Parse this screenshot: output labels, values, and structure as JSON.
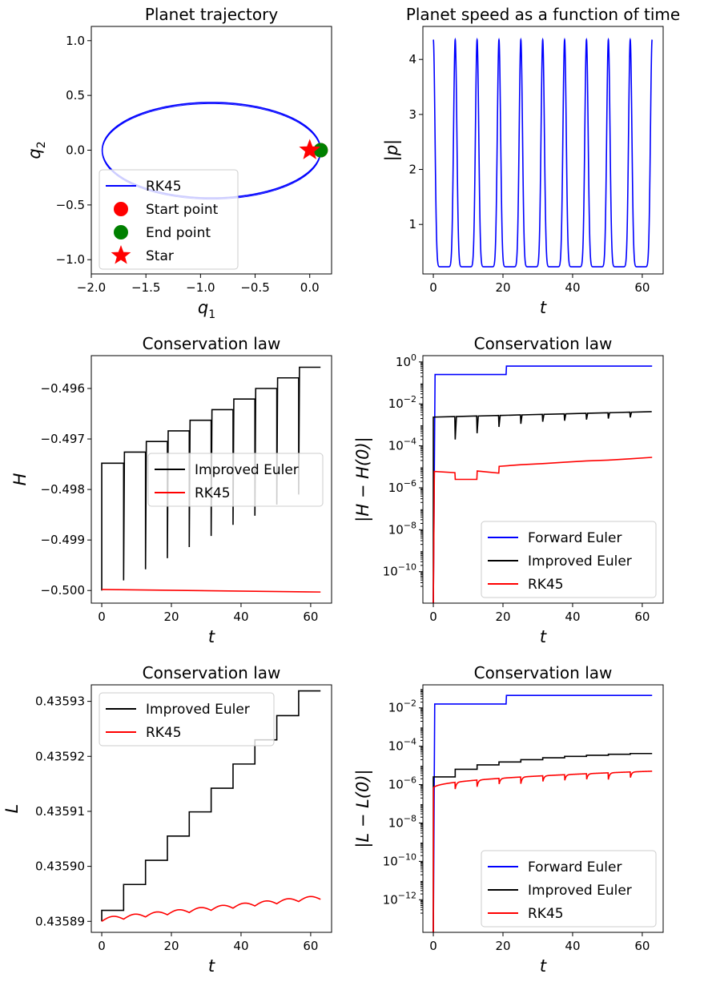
{
  "chart_data": [
    {
      "type": "line",
      "title": "Planet trajectory",
      "xlabel_base": "q",
      "xlabel_sub": "1",
      "ylabel_base": "q",
      "ylabel_sub": "2",
      "xlim": [
        -2.0,
        0.2
      ],
      "ylim": [
        -1.13,
        1.13
      ],
      "xticks": [
        -2.0,
        -1.5,
        -1.0,
        -0.5,
        0.0
      ],
      "xtick_labels": [
        "−2.0",
        "−1.5",
        "−1.0",
        "−0.5",
        "0.0"
      ],
      "yticks": [
        -1.0,
        -0.5,
        0.0,
        0.5,
        1.0
      ],
      "ytick_labels": [
        "−1.0",
        "−0.5",
        "0.0",
        "0.5",
        "1.0"
      ],
      "orbit": {
        "center_x": -0.9,
        "semi_major": 1.0,
        "semi_minor": 0.436,
        "color": "#0000ff"
      },
      "start_point": {
        "x": 0.1,
        "y": 0.0,
        "color": "#ff0000"
      },
      "end_point": {
        "x": 0.1,
        "y": 0.0,
        "color": "#008000"
      },
      "star": {
        "x": 0.0,
        "y": 0.0,
        "color": "#ff0000"
      },
      "legend": {
        "loc": "lower left",
        "entries": [
          {
            "label": "RK45",
            "kind": "line",
            "color": "#0000ff"
          },
          {
            "label": "Start point",
            "kind": "circle",
            "color": "#ff0000"
          },
          {
            "label": "End point",
            "kind": "circle",
            "color": "#008000"
          },
          {
            "label": "Star",
            "kind": "star",
            "color": "#ff0000"
          }
        ]
      }
    },
    {
      "type": "line",
      "title": "Planet speed as a function of time",
      "xlabel": "t",
      "ylabel": "|p|",
      "xlim": [
        -3,
        66
      ],
      "ylim": [
        0.1,
        4.6
      ],
      "xticks": [
        0,
        20,
        40,
        60
      ],
      "xtick_labels": [
        "0",
        "20",
        "40",
        "60"
      ],
      "yticks": [
        1,
        2,
        3,
        4
      ],
      "ytick_labels": [
        "1",
        "2",
        "3",
        "4"
      ],
      "series": [
        {
          "color": "#0000ff",
          "period": 6.283,
          "peak": 4.36,
          "min": 0.23,
          "t_end": 62.83
        }
      ]
    },
    {
      "type": "line",
      "title": "Conservation law",
      "xlabel": "t",
      "ylabel": "H",
      "xlim": [
        -3,
        66
      ],
      "ylim": [
        -0.50025,
        -0.49535
      ],
      "xticks": [
        0,
        20,
        40,
        60
      ],
      "xtick_labels": [
        "0",
        "20",
        "40",
        "60"
      ],
      "yticks": [
        -0.5,
        -0.499,
        -0.498,
        -0.497,
        -0.496
      ],
      "ytick_labels": [
        "−0.500",
        "−0.499",
        "−0.498",
        "−0.497",
        "−0.496"
      ],
      "series": [
        {
          "name": "Improved Euler",
          "color": "#000000",
          "t": [
            0,
            6.28,
            12.57,
            18.85,
            25.13,
            31.42,
            37.7,
            43.98,
            50.27,
            56.55,
            62.83
          ],
          "levels": [
            -0.49748,
            -0.49726,
            -0.49705,
            -0.49684,
            -0.49663,
            -0.49642,
            -0.49621,
            -0.496,
            -0.49579,
            -0.49558,
            -0.49558
          ],
          "dips": [
            -0.4998,
            -0.49958,
            -0.49936,
            -0.49914,
            -0.49892,
            -0.4987,
            -0.49852,
            -0.4983,
            -0.4981
          ]
        },
        {
          "name": "RK45",
          "color": "#ff0000",
          "t": [
            0,
            62.83
          ],
          "values": [
            -0.49998,
            -0.50003
          ]
        }
      ],
      "legend": {
        "loc": "center right"
      }
    },
    {
      "type": "line",
      "title": "Conservation law",
      "xlabel": "t",
      "ylabel": "|H − H(0)|",
      "yscale": "log",
      "xlim": [
        -3,
        66
      ],
      "ylim_log10": [
        -11.5,
        0.3
      ],
      "xticks": [
        0,
        20,
        40,
        60
      ],
      "xtick_labels": [
        "0",
        "20",
        "40",
        "60"
      ],
      "yticks_log10": [
        0,
        -2,
        -4,
        -6,
        -8,
        -10
      ],
      "series": [
        {
          "name": "Forward Euler",
          "color": "#0000ff",
          "t": [
            0,
            0.5,
            20.9,
            21.0,
            62.83
          ],
          "log10": [
            -11.5,
            -0.6,
            -0.6,
            -0.2,
            -0.2
          ]
        },
        {
          "name": "Improved Euler",
          "color": "#000000",
          "t": [
            0,
            62.83
          ],
          "log10_start": -2.63,
          "log10_end": -2.37,
          "period": 6.283,
          "dips": [
            -3.7,
            -3.4,
            -3.1,
            -2.95,
            -2.85,
            -2.8,
            -2.75,
            -2.7,
            -2.65
          ]
        },
        {
          "name": "RK45",
          "color": "#ff0000",
          "t": [
            0.0,
            0.3,
            6.2,
            6.3,
            12.5,
            12.6,
            18.8,
            18.9,
            25.1,
            31.4,
            37.7,
            44.0,
            50.3,
            56.5,
            62.83
          ],
          "log10": [
            -11.5,
            -5.22,
            -5.28,
            -5.6,
            -5.6,
            -5.2,
            -5.3,
            -4.98,
            -4.9,
            -4.85,
            -4.78,
            -4.72,
            -4.68,
            -4.62,
            -4.55
          ]
        }
      ],
      "legend": {
        "loc": "lower right"
      }
    },
    {
      "type": "line",
      "title": "Conservation law",
      "xlabel": "t",
      "ylabel": "L",
      "xlim": [
        -3,
        66
      ],
      "ylim": [
        0.435888,
        0.435933
      ],
      "xticks": [
        0,
        20,
        40,
        60
      ],
      "xtick_labels": [
        "0",
        "20",
        "40",
        "60"
      ],
      "yticks": [
        0.43589,
        0.4359,
        0.43591,
        0.43592,
        0.43593
      ],
      "ytick_labels": [
        "0.43589",
        "0.43590",
        "0.43591",
        "0.43592",
        "0.43593"
      ],
      "series": [
        {
          "name": "Improved Euler",
          "color": "#000000",
          "t": [
            0,
            6.28,
            12.57,
            18.85,
            25.13,
            31.42,
            37.7,
            43.98,
            50.27,
            56.55,
            62.83
          ],
          "steps": [
            0.435892,
            0.4358967,
            0.4359011,
            0.4359055,
            0.4359099,
            0.4359142,
            0.4359186,
            0.435923,
            0.4359274,
            0.4359319,
            0.4359319
          ]
        },
        {
          "name": "RK45",
          "color": "#ff0000",
          "t_start": 0,
          "t_end": 62.83,
          "start": 0.43589,
          "end": 0.435894,
          "period": 6.283,
          "ripple": 7e-07
        }
      ],
      "legend": {
        "loc": "upper left"
      }
    },
    {
      "type": "line",
      "title": "Conservation law",
      "xlabel": "t",
      "ylabel": "|L − L(0)|",
      "yscale": "log",
      "xlim": [
        -3,
        66
      ],
      "ylim_log10": [
        -13.7,
        -0.8
      ],
      "xticks": [
        0,
        20,
        40,
        60
      ],
      "xtick_labels": [
        "0",
        "20",
        "40",
        "60"
      ],
      "yticks_log10": [
        -2,
        -4,
        -6,
        -8,
        -10,
        -12
      ],
      "series": [
        {
          "name": "Forward Euler",
          "color": "#0000ff",
          "t": [
            0,
            0.4,
            20.9,
            21.0,
            62.83
          ],
          "log10": [
            -13.7,
            -1.8,
            -1.8,
            -1.35,
            -1.35
          ]
        },
        {
          "name": "Improved Euler",
          "color": "#000000",
          "t": [
            0,
            6.28,
            12.57,
            18.85,
            25.13,
            31.42,
            37.7,
            43.98,
            50.27,
            56.55,
            62.83
          ],
          "log10_steps": [
            -5.6,
            -5.2,
            -4.97,
            -4.82,
            -4.7,
            -4.6,
            -4.53,
            -4.47,
            -4.42,
            -4.38,
            -4.38
          ]
        },
        {
          "name": "RK45",
          "color": "#ff0000",
          "t_start": 0,
          "t_end": 62.83,
          "log10_start": -6.2,
          "log10_end": -5.3,
          "period": 6.283
        }
      ],
      "legend": {
        "loc": "lower right"
      }
    }
  ]
}
